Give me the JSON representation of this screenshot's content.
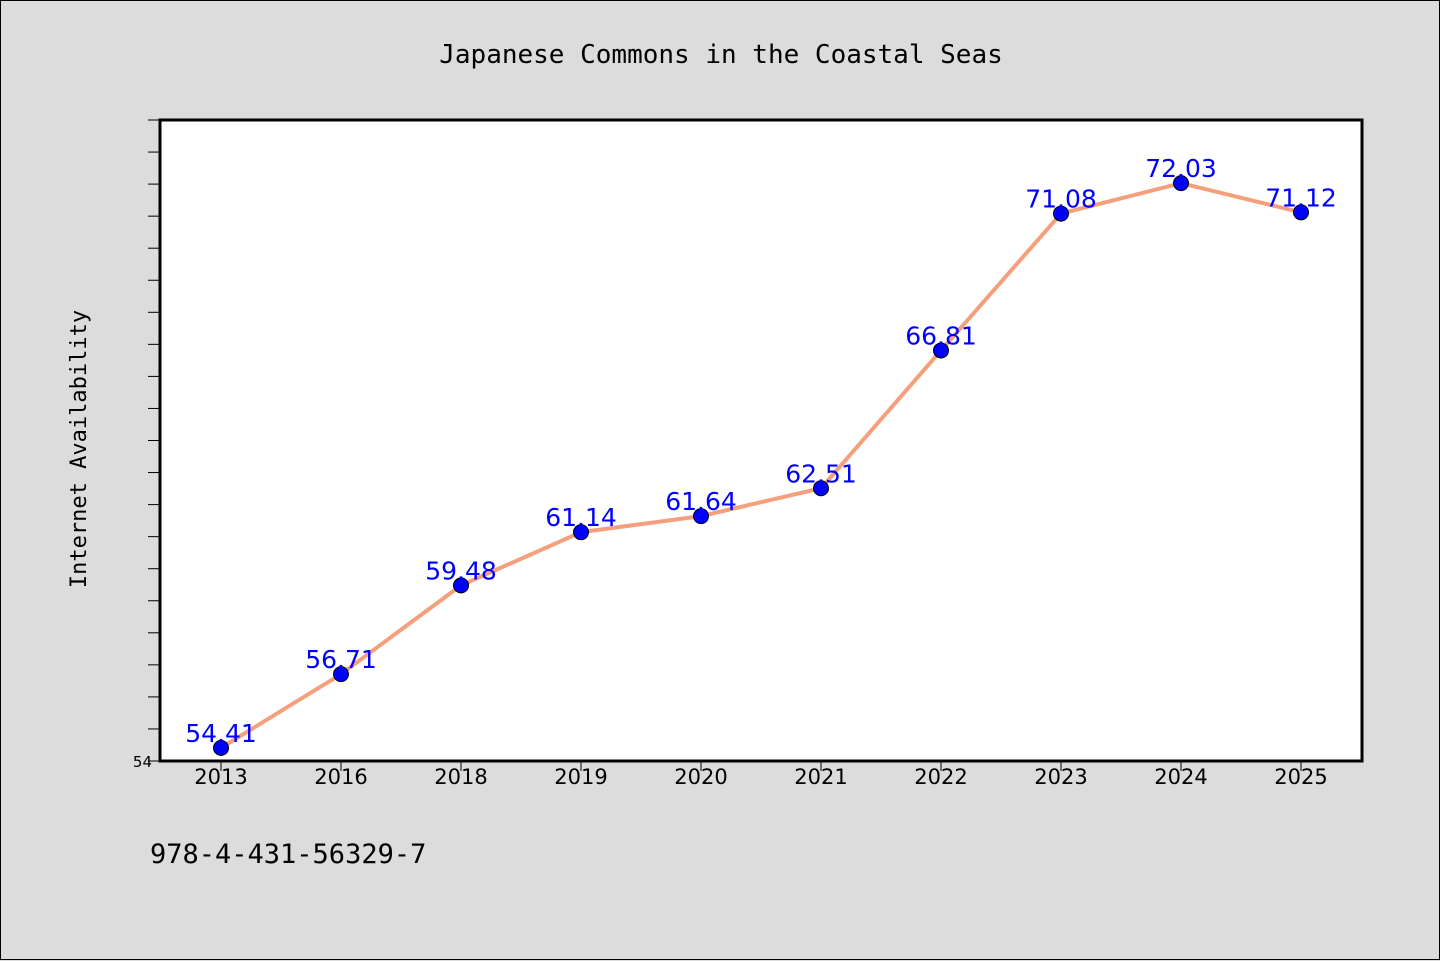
{
  "chart_data": {
    "type": "line",
    "title": "Japanese Commons in the Coastal Seas",
    "ylabel": "Internet Availability",
    "xlabel": "",
    "categories": [
      "2013",
      "2016",
      "2018",
      "2019",
      "2020",
      "2021",
      "2022",
      "2023",
      "2024",
      "2025"
    ],
    "series": [
      {
        "values": [
          54.41,
          56.71,
          59.48,
          61.14,
          61.64,
          62.51,
          66.81,
          71.08,
          72.03,
          71.12
        ],
        "labels": [
          "54.41",
          "56.71",
          "59.48",
          "61.14",
          "61.64",
          "62.51",
          "66.81",
          "71.08",
          "72.03",
          "71.12"
        ]
      }
    ],
    "ylim": [
      54,
      74
    ],
    "yticks_labeled": [
      "54"
    ],
    "grid": false,
    "legend": "none"
  },
  "footer": {
    "isbn": "978-4-431-56329-7"
  },
  "colors": {
    "line": "#f4a07c",
    "marker": "#0000ff",
    "data_label": "#0000ff",
    "background": "#dcdcdc",
    "plot_background": "#ffffff"
  }
}
